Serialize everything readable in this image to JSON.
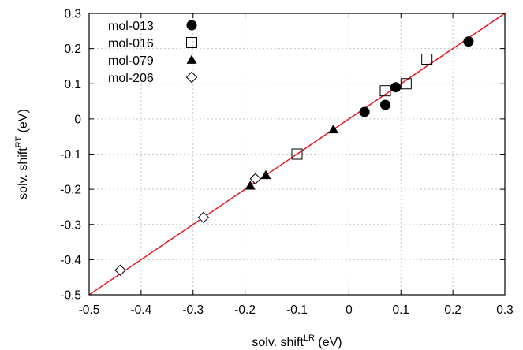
{
  "chart_data": {
    "type": "scatter",
    "xlabel": {
      "base": "solv. shift",
      "sup": "LR",
      "unit": " (eV)"
    },
    "ylabel": {
      "base": "solv. shift",
      "sup": "RT",
      "unit": " (eV)"
    },
    "xlim": [
      -0.5,
      0.3
    ],
    "ylim": [
      -0.5,
      0.3
    ],
    "x_ticks": [
      "-0.5",
      "-0.4",
      "-0.3",
      "-0.2",
      "-0.1",
      "0",
      "0.1",
      "0.2",
      "0.3"
    ],
    "y_ticks": [
      "-0.5",
      "-0.4",
      "-0.3",
      "-0.2",
      "-0.1",
      "0",
      "0.1",
      "0.2",
      "0.3"
    ],
    "grid": true,
    "legend_position": "top-left",
    "reference_line": {
      "type": "y=x",
      "color": "#e8191e"
    },
    "series": [
      {
        "name": "mol-013",
        "marker": "filled-circle",
        "x": [
          0.03,
          0.07,
          0.09,
          0.23
        ],
        "y": [
          0.02,
          0.04,
          0.09,
          0.22
        ]
      },
      {
        "name": "mol-016",
        "marker": "open-square",
        "x": [
          -0.1,
          0.07,
          0.11,
          0.15
        ],
        "y": [
          -0.1,
          0.08,
          0.1,
          0.17
        ]
      },
      {
        "name": "mol-079",
        "marker": "filled-triangle",
        "x": [
          -0.19,
          -0.16,
          -0.03
        ],
        "y": [
          -0.19,
          -0.16,
          -0.03
        ]
      },
      {
        "name": "mol-206",
        "marker": "open-diamond",
        "x": [
          -0.44,
          -0.28,
          -0.18
        ],
        "y": [
          -0.43,
          -0.28,
          -0.17
        ]
      }
    ]
  }
}
